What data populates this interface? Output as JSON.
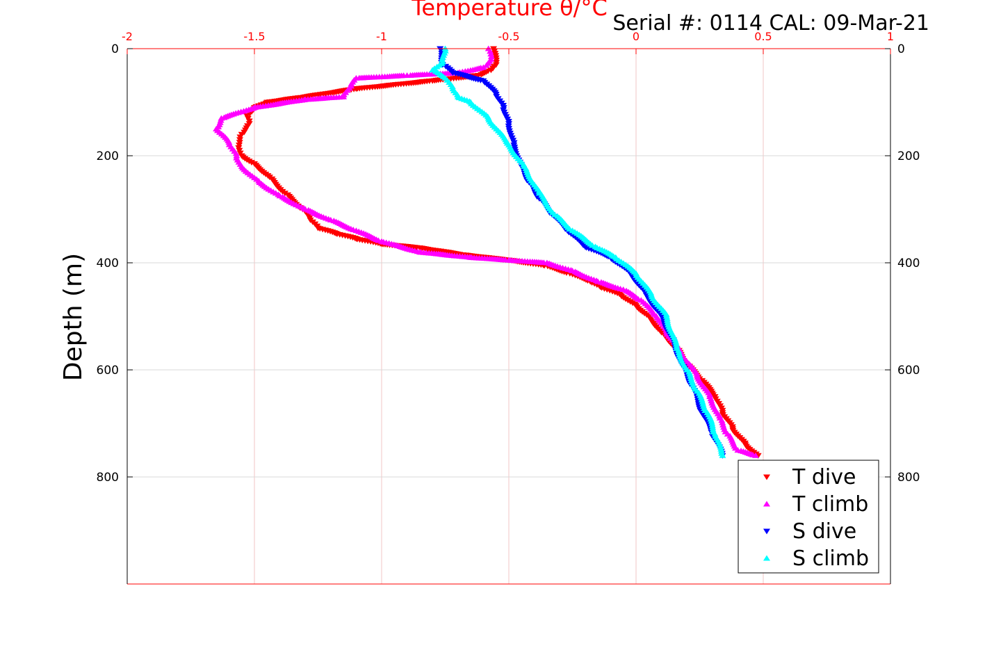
{
  "chart_data": {
    "type": "scatter",
    "title": "Temperature θ/°C",
    "subtitle": "Serial #: 0114  CAL: 09-Mar-21",
    "xlabel": "Temperature θ/°C",
    "ylabel": "Depth (m)",
    "xlim": [
      -2,
      1
    ],
    "ylim": [
      0,
      1000
    ],
    "y_reversed": true,
    "x_axis_position": "top",
    "x_ticks": [
      "-2",
      "-1.5",
      "-1",
      "-0.5",
      "0",
      "0.5",
      "1"
    ],
    "x_tick_values": [
      -2,
      -1.5,
      -1,
      -0.5,
      0,
      0.5,
      1
    ],
    "y_ticks_left": [
      "0",
      "200",
      "400",
      "600",
      "800"
    ],
    "y_ticks_right": [
      "0",
      "200",
      "400",
      "600",
      "800"
    ],
    "y_tick_values": [
      0,
      200,
      400,
      600,
      800
    ],
    "grid": true,
    "legend_position": "bottom-right",
    "colors": {
      "axis_top": "#ff0000",
      "grid": "#d9d9d9",
      "grid_vertical": "#f2c4c4"
    },
    "series": [
      {
        "name": "T dive",
        "marker": "triangle-down",
        "color": "#ff0000",
        "x": [
          -0.56,
          -0.55,
          -0.57,
          -0.62,
          -0.8,
          -1.1,
          -1.3,
          -1.45,
          -1.5,
          -1.53,
          -1.52,
          -1.55,
          -1.56,
          -1.55,
          -1.5,
          -1.44,
          -1.38,
          -1.31,
          -1.28,
          -1.25,
          -1.18,
          -1.1,
          -1.0,
          -0.85,
          -0.68,
          -0.5,
          -0.36,
          -0.26,
          -0.18,
          -0.14,
          -0.06,
          0.0,
          0.05,
          0.1,
          0.16,
          0.2,
          0.26,
          0.31,
          0.34,
          0.38,
          0.43,
          0.48
        ],
        "y": [
          0,
          30,
          40,
          50,
          60,
          75,
          90,
          100,
          110,
          125,
          140,
          160,
          180,
          200,
          215,
          240,
          270,
          300,
          320,
          335,
          345,
          355,
          365,
          372,
          385,
          395,
          405,
          420,
          435,
          445,
          460,
          480,
          500,
          530,
          560,
          590,
          620,
          650,
          680,
          710,
          740,
          760
        ]
      },
      {
        "name": "T climb",
        "marker": "triangle-up",
        "color": "#ff00ff",
        "x": [
          -0.58,
          -0.57,
          -0.6,
          -0.7,
          -0.9,
          -1.1,
          -1.12,
          -1.15,
          -1.3,
          -1.5,
          -1.63,
          -1.65,
          -1.6,
          -1.57,
          -1.55,
          -1.48,
          -1.4,
          -1.3,
          -1.2,
          -1.1,
          -1.0,
          -0.85,
          -0.65,
          -0.5,
          -0.35,
          -0.25,
          -0.15,
          -0.05,
          0.02,
          0.08,
          0.12,
          0.18,
          0.24,
          0.29,
          0.33,
          0.36,
          0.4,
          0.47
        ],
        "y": [
          0,
          20,
          35,
          45,
          50,
          55,
          70,
          90,
          95,
          110,
          130,
          150,
          175,
          200,
          220,
          250,
          275,
          300,
          320,
          340,
          360,
          380,
          390,
          395,
          400,
          415,
          435,
          450,
          470,
          500,
          530,
          570,
          610,
          650,
          690,
          720,
          750,
          760
        ]
      },
      {
        "name": "S dive",
        "marker": "triangle-down",
        "color": "#0000ff",
        "x": [
          -0.77,
          -0.76,
          -0.72,
          -0.6,
          -0.55,
          -0.52,
          -0.5,
          -0.48,
          -0.45,
          -0.42,
          -0.38,
          -0.33,
          -0.27,
          -0.2,
          -0.1,
          -0.02,
          0.04,
          0.1,
          0.14,
          0.18,
          0.22,
          0.26,
          0.3,
          0.34
        ],
        "y": [
          0,
          30,
          45,
          60,
          85,
          110,
          140,
          180,
          220,
          250,
          280,
          310,
          340,
          370,
          390,
          420,
          460,
          500,
          540,
          590,
          630,
          680,
          720,
          760
        ]
      },
      {
        "name": "S climb",
        "marker": "triangle-up",
        "color": "#00ffff",
        "x": [
          -0.75,
          -0.76,
          -0.8,
          -0.75,
          -0.72,
          -0.7,
          -0.65,
          -0.58,
          -0.5,
          -0.44,
          -0.38,
          -0.32,
          -0.25,
          -0.16,
          -0.08,
          0.0,
          0.06,
          0.12,
          0.16,
          0.2,
          0.24,
          0.28,
          0.31,
          0.34
        ],
        "y": [
          0,
          25,
          40,
          55,
          75,
          90,
          100,
          130,
          180,
          220,
          270,
          310,
          340,
          370,
          390,
          420,
          460,
          500,
          560,
          600,
          640,
          680,
          720,
          760
        ]
      }
    ]
  }
}
